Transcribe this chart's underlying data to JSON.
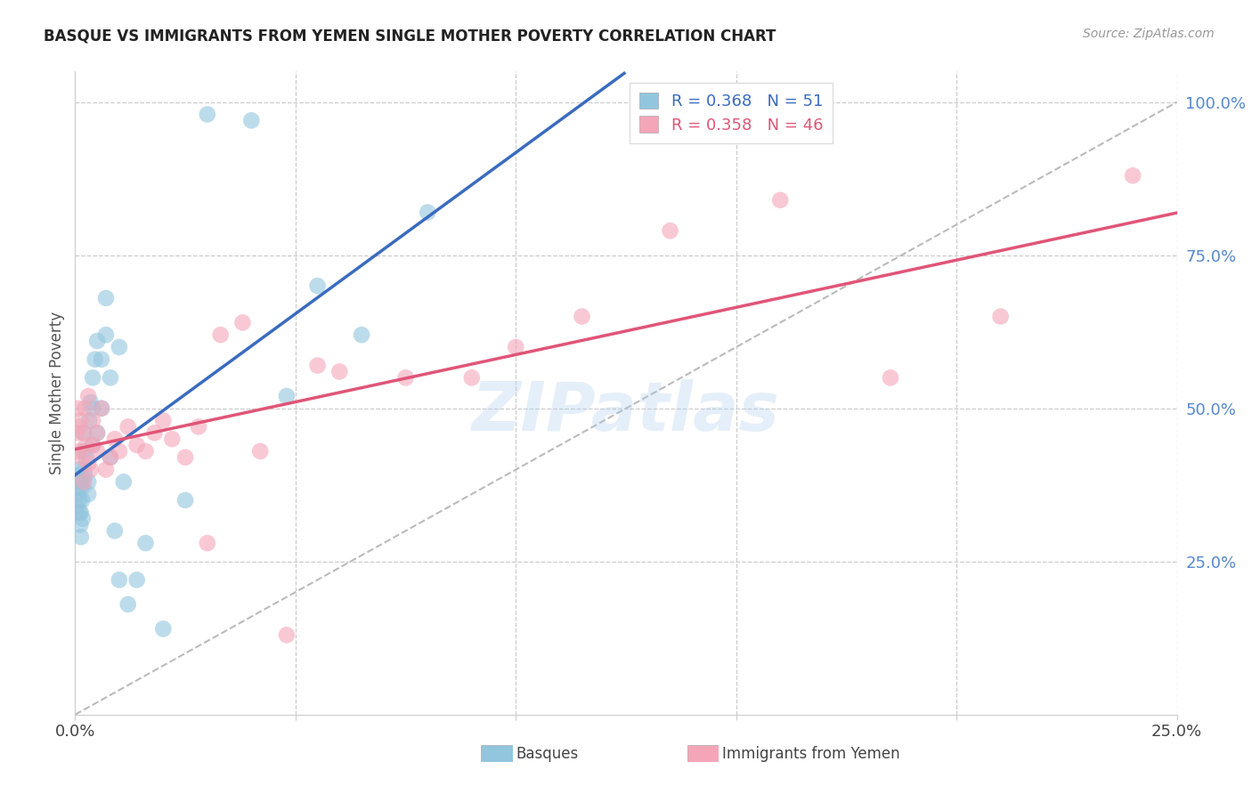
{
  "title": "BASQUE VS IMMIGRANTS FROM YEMEN SINGLE MOTHER POVERTY CORRELATION CHART",
  "source": "Source: ZipAtlas.com",
  "ylabel": "Single Mother Poverty",
  "basque_R": 0.368,
  "basque_N": 51,
  "yemen_R": 0.358,
  "yemen_N": 46,
  "xlim": [
    0.0,
    0.25
  ],
  "ylim": [
    0.0,
    1.05
  ],
  "blue_color": "#92c5de",
  "pink_color": "#f4a6b8",
  "blue_line_color": "#3a6bbf",
  "pink_line_color": "#e05577",
  "grid_color": "#cccccc",
  "watermark": "ZIPatlas",
  "right_tick_color": "#5588cc",
  "basque_x": [
    0.0003,
    0.0005,
    0.0007,
    0.0008,
    0.0009,
    0.001,
    0.001,
    0.0011,
    0.0012,
    0.0013,
    0.0013,
    0.0015,
    0.0016,
    0.0017,
    0.0018,
    0.002,
    0.002,
    0.002,
    0.0022,
    0.0025,
    0.003,
    0.003,
    0.0032,
    0.0035,
    0.004,
    0.004,
    0.004,
    0.0045,
    0.005,
    0.005,
    0.006,
    0.006,
    0.007,
    0.007,
    0.008,
    0.008,
    0.009,
    0.01,
    0.01,
    0.011,
    0.012,
    0.014,
    0.016,
    0.02,
    0.025,
    0.03,
    0.04,
    0.048,
    0.055,
    0.065,
    0.08
  ],
  "basque_y": [
    0.34,
    0.36,
    0.37,
    0.39,
    0.4,
    0.33,
    0.35,
    0.38,
    0.31,
    0.29,
    0.33,
    0.37,
    0.35,
    0.32,
    0.38,
    0.4,
    0.43,
    0.46,
    0.39,
    0.42,
    0.36,
    0.38,
    0.48,
    0.51,
    0.44,
    0.5,
    0.55,
    0.58,
    0.46,
    0.61,
    0.5,
    0.58,
    0.62,
    0.68,
    0.42,
    0.55,
    0.3,
    0.22,
    0.6,
    0.38,
    0.18,
    0.22,
    0.28,
    0.14,
    0.35,
    0.98,
    0.97,
    0.52,
    0.7,
    0.62,
    0.82
  ],
  "yemen_x": [
    0.0003,
    0.0005,
    0.0008,
    0.001,
    0.0012,
    0.0015,
    0.0018,
    0.002,
    0.0022,
    0.0025,
    0.003,
    0.003,
    0.0035,
    0.004,
    0.004,
    0.005,
    0.005,
    0.006,
    0.007,
    0.008,
    0.009,
    0.01,
    0.012,
    0.014,
    0.016,
    0.018,
    0.02,
    0.022,
    0.025,
    0.028,
    0.03,
    0.033,
    0.038,
    0.042,
    0.048,
    0.055,
    0.06,
    0.075,
    0.09,
    0.1,
    0.115,
    0.135,
    0.16,
    0.185,
    0.21,
    0.24
  ],
  "yemen_y": [
    0.46,
    0.5,
    0.43,
    0.47,
    0.48,
    0.42,
    0.46,
    0.38,
    0.5,
    0.44,
    0.41,
    0.52,
    0.4,
    0.44,
    0.48,
    0.46,
    0.43,
    0.5,
    0.4,
    0.42,
    0.45,
    0.43,
    0.47,
    0.44,
    0.43,
    0.46,
    0.48,
    0.45,
    0.42,
    0.47,
    0.28,
    0.62,
    0.64,
    0.43,
    0.13,
    0.57,
    0.56,
    0.55,
    0.55,
    0.6,
    0.65,
    0.79,
    0.84,
    0.55,
    0.65,
    0.88
  ]
}
